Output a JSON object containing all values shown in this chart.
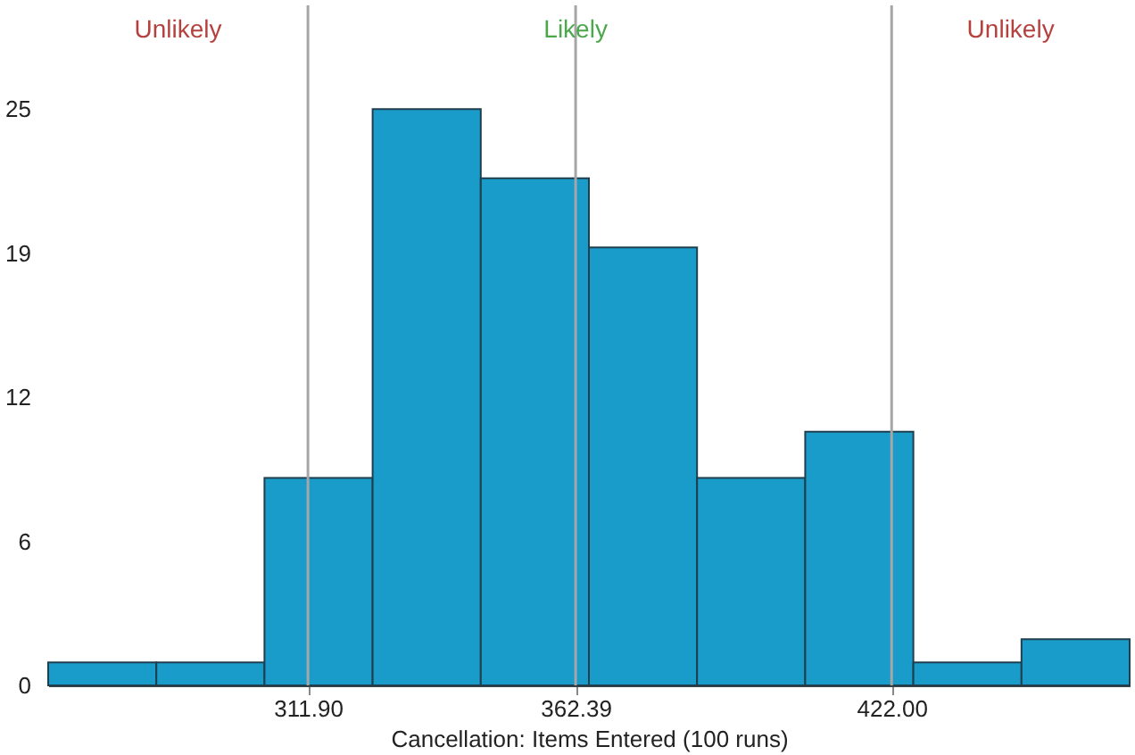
{
  "chart_data": {
    "type": "histogram",
    "xlabel": "Cancellation: Items Entered (100 runs)",
    "bins": [
      262.9,
      283.3,
      303.7,
      324.1,
      344.5,
      364.9,
      385.3,
      405.7,
      426.1,
      446.5,
      466.9
    ],
    "values": [
      1,
      1,
      9,
      25,
      22,
      19,
      9,
      11,
      1,
      2
    ],
    "color": "#1a9ccb",
    "xlim": [
      262.9,
      466.9
    ],
    "xticks": [
      {
        "value": 311.9,
        "label": "311.90"
      },
      {
        "value": 362.39,
        "label": "362.39"
      },
      {
        "value": 422.0,
        "label": "422.00"
      }
    ],
    "ylim": [
      0,
      29.5
    ],
    "yticks": [
      0,
      {
        "value": 6.25,
        "label": "6"
      },
      {
        "value": 12.5,
        "label": "12"
      },
      {
        "value": 18.75,
        "label": "19"
      },
      25
    ],
    "ref_lines": [
      {
        "axis": "x",
        "value": 311.9,
        "color": "#a6a6a6"
      },
      {
        "axis": "x",
        "value": 362.39,
        "color": "#a6a6a6"
      },
      {
        "axis": "x",
        "value": 422.0,
        "color": "#a6a6a6"
      }
    ],
    "annotations": [
      "Unlikely",
      "Likely",
      "Unlikely"
    ],
    "grid": false
  }
}
